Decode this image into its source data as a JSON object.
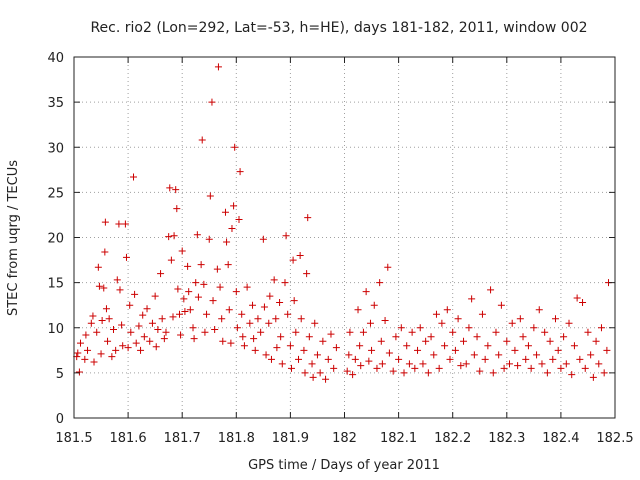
{
  "chart_data": {
    "type": "scatter",
    "title": "Rec. rio2 (Lon=292, Lat=-53, h=HE), days 181-182, 2011, window 002",
    "xlabel": "GPS time / Days of year 2011",
    "ylabel": "STEC from uqrg / TECUs",
    "xlim": [
      181.5,
      182.5
    ],
    "ylim": [
      0,
      40
    ],
    "x_ticks": [
      "181.5",
      "181.6",
      "181.7",
      "181.8",
      "181.9",
      "182",
      "182.1",
      "182.2",
      "182.3",
      "182.4",
      "182.5"
    ],
    "y_ticks": [
      "0",
      "5",
      "10",
      "15",
      "20",
      "25",
      "30",
      "35",
      "40"
    ],
    "grid": true,
    "marker": "+",
    "color": "#cc0000",
    "series": [
      {
        "name": "STEC",
        "points": [
          [
            181.505,
            6.8
          ],
          [
            181.507,
            7.2
          ],
          [
            181.51,
            5.1
          ],
          [
            181.512,
            8.3
          ],
          [
            181.52,
            6.5
          ],
          [
            181.522,
            9.2
          ],
          [
            181.525,
            7.5
          ],
          [
            181.532,
            10.5
          ],
          [
            181.535,
            11.3
          ],
          [
            181.537,
            6.2
          ],
          [
            181.542,
            9.5
          ],
          [
            181.545,
            16.7
          ],
          [
            181.547,
            14.6
          ],
          [
            181.55,
            7.1
          ],
          [
            181.552,
            10.8
          ],
          [
            181.555,
            14.4
          ],
          [
            181.557,
            18.4
          ],
          [
            181.558,
            21.7
          ],
          [
            181.56,
            12.1
          ],
          [
            181.562,
            8.5
          ],
          [
            181.565,
            11.0
          ],
          [
            181.57,
            6.8
          ],
          [
            181.573,
            9.8
          ],
          [
            181.577,
            7.5
          ],
          [
            181.58,
            15.3
          ],
          [
            181.583,
            21.5
          ],
          [
            181.585,
            14.2
          ],
          [
            181.588,
            10.3
          ],
          [
            181.59,
            8.0
          ],
          [
            181.595,
            21.5
          ],
          [
            181.597,
            17.8
          ],
          [
            181.6,
            7.8
          ],
          [
            181.603,
            12.5
          ],
          [
            181.605,
            9.5
          ],
          [
            181.61,
            26.7
          ],
          [
            181.612,
            13.7
          ],
          [
            181.615,
            8.3
          ],
          [
            181.62,
            10.2
          ],
          [
            181.623,
            7.5
          ],
          [
            181.627,
            11.4
          ],
          [
            181.63,
            9.0
          ],
          [
            181.635,
            12.1
          ],
          [
            181.64,
            8.5
          ],
          [
            181.645,
            10.5
          ],
          [
            181.65,
            13.5
          ],
          [
            181.652,
            7.9
          ],
          [
            181.655,
            9.8
          ],
          [
            181.66,
            16.0
          ],
          [
            181.663,
            11.0
          ],
          [
            181.667,
            8.8
          ],
          [
            181.67,
            9.5
          ],
          [
            181.675,
            20.1
          ],
          [
            181.677,
            25.5
          ],
          [
            181.68,
            17.5
          ],
          [
            181.683,
            11.2
          ],
          [
            181.685,
            20.2
          ],
          [
            181.688,
            25.3
          ],
          [
            181.69,
            23.2
          ],
          [
            181.692,
            14.3
          ],
          [
            181.695,
            11.5
          ],
          [
            181.697,
            9.2
          ],
          [
            181.7,
            18.5
          ],
          [
            181.703,
            13.2
          ],
          [
            181.705,
            11.8
          ],
          [
            181.71,
            16.8
          ],
          [
            181.712,
            14.0
          ],
          [
            181.715,
            12.0
          ],
          [
            181.72,
            10.0
          ],
          [
            181.722,
            8.8
          ],
          [
            181.725,
            15.0
          ],
          [
            181.728,
            20.3
          ],
          [
            181.73,
            13.4
          ],
          [
            181.735,
            17.0
          ],
          [
            181.737,
            30.8
          ],
          [
            181.74,
            14.8
          ],
          [
            181.742,
            9.5
          ],
          [
            181.745,
            11.5
          ],
          [
            181.75,
            19.8
          ],
          [
            181.752,
            24.6
          ],
          [
            181.755,
            35.0
          ],
          [
            181.757,
            13.0
          ],
          [
            181.76,
            9.8
          ],
          [
            181.765,
            16.5
          ],
          [
            181.767,
            38.9
          ],
          [
            181.77,
            14.5
          ],
          [
            181.773,
            11.0
          ],
          [
            181.775,
            8.5
          ],
          [
            181.78,
            22.8
          ],
          [
            181.782,
            19.5
          ],
          [
            181.785,
            17.0
          ],
          [
            181.787,
            12.0
          ],
          [
            181.79,
            8.3
          ],
          [
            181.792,
            21.0
          ],
          [
            181.795,
            23.5
          ],
          [
            181.797,
            30.0
          ],
          [
            181.8,
            14.0
          ],
          [
            181.802,
            10.0
          ],
          [
            181.805,
            22.0
          ],
          [
            181.807,
            27.3
          ],
          [
            181.81,
            11.5
          ],
          [
            181.812,
            9.0
          ],
          [
            181.815,
            8.0
          ],
          [
            181.82,
            14.5
          ],
          [
            181.825,
            10.5
          ],
          [
            181.83,
            12.5
          ],
          [
            181.832,
            8.8
          ],
          [
            181.835,
            7.5
          ],
          [
            181.84,
            11.0
          ],
          [
            181.845,
            9.5
          ],
          [
            181.85,
            19.8
          ],
          [
            181.852,
            12.3
          ],
          [
            181.855,
            7.0
          ],
          [
            181.86,
            10.5
          ],
          [
            181.862,
            13.5
          ],
          [
            181.865,
            6.5
          ],
          [
            181.87,
            15.3
          ],
          [
            181.873,
            11.0
          ],
          [
            181.875,
            7.8
          ],
          [
            181.88,
            12.8
          ],
          [
            181.882,
            9.0
          ],
          [
            181.885,
            6.0
          ],
          [
            181.89,
            15.0
          ],
          [
            181.892,
            20.2
          ],
          [
            181.895,
            11.5
          ],
          [
            181.9,
            8.0
          ],
          [
            181.902,
            5.5
          ],
          [
            181.905,
            17.5
          ],
          [
            181.907,
            13.0
          ],
          [
            181.91,
            9.5
          ],
          [
            181.915,
            6.5
          ],
          [
            181.918,
            18.0
          ],
          [
            181.92,
            11.0
          ],
          [
            181.925,
            7.5
          ],
          [
            181.927,
            5.0
          ],
          [
            181.93,
            16.0
          ],
          [
            181.932,
            22.2
          ],
          [
            181.935,
            9.0
          ],
          [
            181.94,
            6.0
          ],
          [
            181.942,
            4.5
          ],
          [
            181.945,
            10.5
          ],
          [
            181.95,
            7.0
          ],
          [
            181.955,
            5.0
          ],
          [
            181.96,
            8.5
          ],
          [
            181.965,
            4.3
          ],
          [
            181.97,
            6.5
          ],
          [
            181.975,
            9.3
          ],
          [
            181.98,
            5.5
          ],
          [
            181.985,
            7.8
          ],
          [
            182.005,
            5.2
          ],
          [
            182.008,
            7.0
          ],
          [
            182.01,
            9.5
          ],
          [
            182.015,
            4.8
          ],
          [
            182.02,
            6.5
          ],
          [
            182.025,
            12.0
          ],
          [
            182.028,
            8.0
          ],
          [
            182.03,
            5.8
          ],
          [
            182.035,
            9.5
          ],
          [
            182.04,
            14.0
          ],
          [
            182.045,
            6.3
          ],
          [
            182.048,
            10.5
          ],
          [
            182.05,
            7.5
          ],
          [
            182.055,
            12.5
          ],
          [
            182.06,
            5.5
          ],
          [
            182.065,
            15.0
          ],
          [
            182.068,
            8.5
          ],
          [
            182.07,
            6.0
          ],
          [
            182.075,
            10.8
          ],
          [
            182.08,
            16.7
          ],
          [
            182.083,
            7.2
          ],
          [
            182.09,
            5.2
          ],
          [
            182.095,
            9.0
          ],
          [
            182.1,
            6.5
          ],
          [
            182.105,
            10.0
          ],
          [
            182.11,
            5.0
          ],
          [
            182.115,
            8.0
          ],
          [
            182.12,
            6.0
          ],
          [
            182.125,
            9.5
          ],
          [
            182.13,
            5.5
          ],
          [
            182.135,
            7.5
          ],
          [
            182.14,
            10.0
          ],
          [
            182.145,
            6.0
          ],
          [
            182.15,
            8.5
          ],
          [
            182.155,
            5.0
          ],
          [
            182.16,
            9.0
          ],
          [
            182.165,
            7.0
          ],
          [
            182.17,
            11.5
          ],
          [
            182.175,
            5.5
          ],
          [
            182.18,
            10.5
          ],
          [
            182.185,
            8.0
          ],
          [
            182.19,
            12.0
          ],
          [
            182.195,
            6.5
          ],
          [
            182.2,
            9.5
          ],
          [
            182.205,
            7.5
          ],
          [
            182.21,
            11.0
          ],
          [
            182.215,
            5.8
          ],
          [
            182.22,
            8.5
          ],
          [
            182.225,
            6.0
          ],
          [
            182.23,
            10.0
          ],
          [
            182.235,
            13.2
          ],
          [
            182.24,
            7.0
          ],
          [
            182.245,
            9.0
          ],
          [
            182.25,
            5.2
          ],
          [
            182.255,
            11.5
          ],
          [
            182.26,
            6.5
          ],
          [
            182.265,
            8.0
          ],
          [
            182.27,
            14.2
          ],
          [
            182.275,
            5.0
          ],
          [
            182.28,
            9.5
          ],
          [
            182.285,
            7.0
          ],
          [
            182.29,
            12.5
          ],
          [
            182.295,
            5.5
          ],
          [
            182.3,
            8.5
          ],
          [
            182.305,
            6.0
          ],
          [
            182.31,
            10.5
          ],
          [
            182.315,
            7.5
          ],
          [
            182.32,
            5.8
          ],
          [
            182.325,
            11.0
          ],
          [
            182.33,
            9.0
          ],
          [
            182.335,
            6.5
          ],
          [
            182.34,
            8.0
          ],
          [
            182.345,
            5.5
          ],
          [
            182.35,
            10.0
          ],
          [
            182.355,
            7.0
          ],
          [
            182.36,
            12.0
          ],
          [
            182.365,
            6.0
          ],
          [
            182.37,
            9.5
          ],
          [
            182.375,
            5.0
          ],
          [
            182.38,
            8.5
          ],
          [
            182.385,
            6.5
          ],
          [
            182.39,
            11.0
          ],
          [
            182.395,
            7.5
          ],
          [
            182.4,
            5.5
          ],
          [
            182.405,
            9.0
          ],
          [
            182.41,
            6.0
          ],
          [
            182.415,
            10.5
          ],
          [
            182.42,
            4.8
          ],
          [
            182.425,
            8.0
          ],
          [
            182.43,
            13.3
          ],
          [
            182.435,
            6.5
          ],
          [
            182.44,
            12.8
          ],
          [
            182.445,
            5.5
          ],
          [
            182.45,
            9.5
          ],
          [
            182.455,
            7.0
          ],
          [
            182.46,
            4.5
          ],
          [
            182.465,
            8.5
          ],
          [
            182.47,
            6.0
          ],
          [
            182.475,
            10.0
          ],
          [
            182.48,
            5.0
          ],
          [
            182.485,
            7.5
          ],
          [
            182.488,
            15.0
          ]
        ]
      }
    ]
  }
}
